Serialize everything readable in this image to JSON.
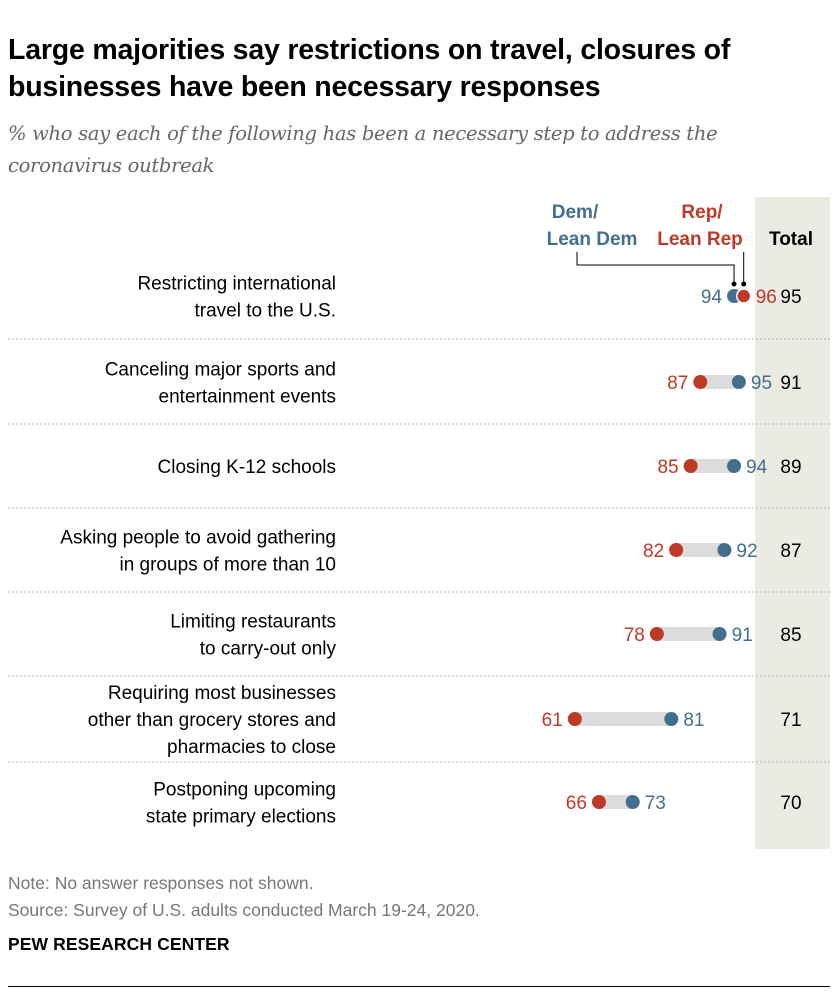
{
  "title": "Large majorities say restrictions on travel, closures of businesses have been necessary responses",
  "subtitle": "% who say each of the following has been a necessary step to address the coronavirus outbreak",
  "note": "Note: No answer responses not shown.",
  "source": "Source: Survey of U.S. adults conducted March 19-24, 2020.",
  "brand": "PEW RESEARCH CENTER",
  "colors": {
    "dem": "#436f8f",
    "rep": "#bf3927",
    "connector": "#dcdcdc",
    "total_band": "#ebeae3",
    "divider": "#b5b5b5"
  },
  "chart_data": {
    "type": "dot",
    "legend": {
      "dem": [
        "Dem/",
        "Lean Dem"
      ],
      "rep": [
        "Rep/",
        "Lean Rep"
      ],
      "total": "Total"
    },
    "categories": [
      [
        "Restricting international",
        "travel to the U.S."
      ],
      [
        "Canceling major sports and",
        "entertainment events"
      ],
      [
        "Closing K-12 schools"
      ],
      [
        "Asking people to avoid gathering",
        "in groups of more than 10"
      ],
      [
        "Limiting restaurants",
        "to carry-out only"
      ],
      [
        "Requiring most businesses",
        "other than grocery stores and",
        "pharmacies to close"
      ],
      [
        "Postponing upcoming",
        "state primary elections"
      ]
    ],
    "series": [
      {
        "name": "Dem/Lean Dem",
        "values": [
          94,
          95,
          94,
          92,
          91,
          81,
          73
        ]
      },
      {
        "name": "Rep/Lean Rep",
        "values": [
          96,
          87,
          85,
          82,
          78,
          61,
          66
        ]
      }
    ],
    "total": [
      95,
      91,
      89,
      87,
      85,
      71,
      70
    ]
  }
}
